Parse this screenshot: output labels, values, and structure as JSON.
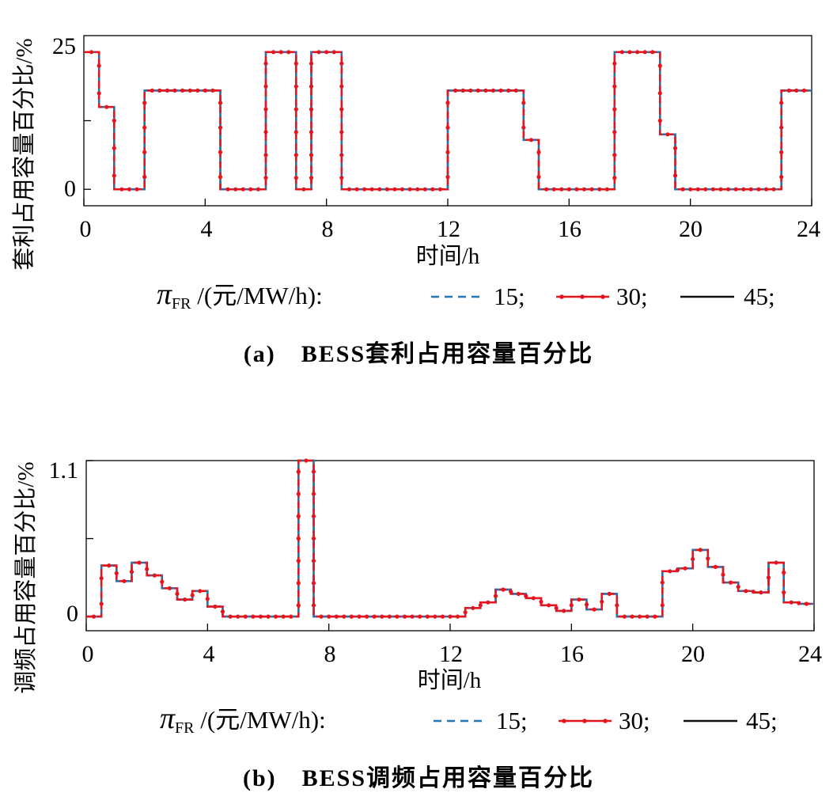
{
  "chart_data": [
    {
      "type": "line",
      "step": true,
      "caption": "(a)　BESS套利占用容量百分比",
      "xlabel": "时间/h",
      "ylabel": "套利占用容量百分比/%",
      "xlim": [
        0,
        24
      ],
      "ylim": [
        -3,
        28
      ],
      "xticks": [
        "0",
        "4",
        "8",
        "12",
        "16",
        "20",
        "24"
      ],
      "yticks": [
        "0",
        "25"
      ],
      "ytick_values": [
        0,
        12.5,
        25
      ],
      "legend": {
        "position": "bottom",
        "label": "π",
        "label_sub": "FR",
        "label_suffix": " /(元/MW/h):",
        "entries": [
          "15;",
          "30;",
          "45;"
        ]
      },
      "x": [
        0,
        0.5,
        1,
        1.5,
        2,
        2.5,
        3,
        3.5,
        4,
        4.5,
        5,
        5.5,
        6,
        6.5,
        7,
        7.5,
        8,
        8.5,
        9,
        9.5,
        10,
        10.5,
        11,
        11.5,
        12,
        12.5,
        13,
        13.5,
        14,
        14.5,
        15,
        15.5,
        16,
        16.5,
        17,
        17.5,
        18,
        18.5,
        19,
        19.5,
        20,
        20.5,
        21,
        21.5,
        22,
        22.5,
        23,
        23.5
      ],
      "series": [
        {
          "name": "15",
          "values": [
            25,
            15,
            0,
            0,
            18,
            18,
            18,
            18,
            18,
            0,
            0,
            0,
            25,
            25,
            0,
            25,
            25,
            0,
            0,
            0,
            0,
            0,
            0,
            0,
            18,
            18,
            18,
            18,
            18,
            9,
            0,
            0,
            0,
            0,
            0,
            25,
            25,
            25,
            10,
            0,
            0,
            0,
            0,
            0,
            0,
            0,
            18,
            18
          ]
        },
        {
          "name": "30",
          "values": [
            25,
            15,
            0,
            0,
            18,
            18,
            18,
            18,
            18,
            0,
            0,
            0,
            25,
            25,
            0,
            25,
            25,
            0,
            0,
            0,
            0,
            0,
            0,
            0,
            18,
            18,
            18,
            18,
            18,
            9,
            0,
            0,
            0,
            0,
            0,
            25,
            25,
            25,
            10,
            0,
            0,
            0,
            0,
            0,
            0,
            0,
            18,
            18
          ]
        },
        {
          "name": "45",
          "values": [
            25,
            15,
            0,
            0,
            18,
            18,
            18,
            18,
            18,
            0,
            0,
            0,
            25,
            25,
            0,
            25,
            25,
            0,
            0,
            0,
            0,
            0,
            0,
            0,
            18,
            18,
            18,
            18,
            18,
            9,
            0,
            0,
            0,
            0,
            0,
            25,
            25,
            25,
            10,
            0,
            0,
            0,
            0,
            0,
            0,
            0,
            18,
            18
          ]
        }
      ]
    },
    {
      "type": "line",
      "step": true,
      "caption": "(b)　BESS调频占用容量百分比",
      "xlabel": "时间/h",
      "ylabel": "调频占用容量百分比/%",
      "xlim": [
        0,
        24
      ],
      "ylim": [
        -0.1,
        1.1
      ],
      "xticks": [
        "0",
        "4",
        "8",
        "12",
        "16",
        "20",
        "24"
      ],
      "yticks": [
        "0",
        "1.1"
      ],
      "ytick_values": [
        0,
        0.55,
        1.1
      ],
      "legend": {
        "position": "bottom",
        "label": "π",
        "label_sub": "FR",
        "label_suffix": " /(元/MW/h):",
        "entries": [
          "15;",
          "30;",
          "45;"
        ]
      },
      "x": [
        0,
        0.5,
        1,
        1.5,
        2,
        2.5,
        3,
        3.5,
        4,
        4.5,
        5,
        5.5,
        6,
        6.5,
        7,
        7.5,
        8,
        8.5,
        9,
        9.5,
        10,
        10.5,
        11,
        11.5,
        12,
        12.5,
        13,
        13.5,
        14,
        14.5,
        15,
        15.5,
        16,
        16.5,
        17,
        17.5,
        18,
        18.5,
        19,
        19.5,
        20,
        20.5,
        21,
        21.5,
        22,
        22.5,
        23,
        23.5
      ],
      "series": [
        {
          "name": "15",
          "values": [
            0,
            0.36,
            0.25,
            0.38,
            0.29,
            0.2,
            0.12,
            0.18,
            0.07,
            0,
            0,
            0,
            0,
            0,
            1.1,
            0,
            0,
            0,
            0,
            0,
            0,
            0,
            0,
            0,
            0,
            0.06,
            0.1,
            0.19,
            0.16,
            0.13,
            0.08,
            0.04,
            0.12,
            0.05,
            0.16,
            0,
            0,
            0,
            0.32,
            0.34,
            0.47,
            0.35,
            0.24,
            0.18,
            0.17,
            0.38,
            0.1,
            0.09
          ]
        },
        {
          "name": "30",
          "values": [
            0,
            0.36,
            0.25,
            0.38,
            0.29,
            0.2,
            0.12,
            0.18,
            0.07,
            0,
            0,
            0,
            0,
            0,
            1.1,
            0,
            0,
            0,
            0,
            0,
            0,
            0,
            0,
            0,
            0,
            0.06,
            0.1,
            0.19,
            0.16,
            0.13,
            0.08,
            0.04,
            0.12,
            0.05,
            0.16,
            0,
            0,
            0,
            0.32,
            0.34,
            0.47,
            0.35,
            0.24,
            0.18,
            0.17,
            0.38,
            0.1,
            0.09
          ]
        },
        {
          "name": "45",
          "values": [
            0,
            0.36,
            0.25,
            0.38,
            0.29,
            0.2,
            0.12,
            0.18,
            0.07,
            0,
            0,
            0,
            0,
            0,
            1.1,
            0,
            0,
            0,
            0,
            0,
            0,
            0,
            0,
            0,
            0,
            0.06,
            0.1,
            0.19,
            0.16,
            0.13,
            0.08,
            0.04,
            0.12,
            0.05,
            0.16,
            0,
            0,
            0,
            0.32,
            0.34,
            0.47,
            0.35,
            0.24,
            0.18,
            0.17,
            0.38,
            0.1,
            0.09
          ]
        }
      ]
    }
  ],
  "colors": {
    "series_15": "#1f77b4",
    "series_30": "#e8141c",
    "series_45": "#111111",
    "step_line": "#3a67a8"
  }
}
